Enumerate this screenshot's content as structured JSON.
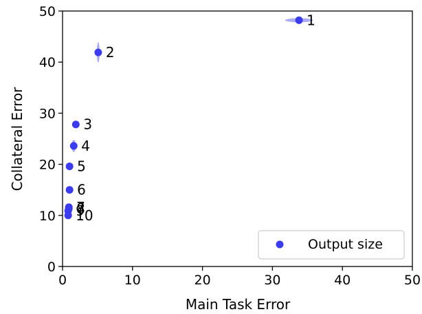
{
  "chart_data": {
    "type": "scatter",
    "xlabel": "Main Task Error",
    "ylabel": "Collateral Error",
    "xlim": [
      0,
      50
    ],
    "ylim": [
      0,
      50
    ],
    "xticks": [
      0,
      10,
      20,
      30,
      40,
      50
    ],
    "yticks": [
      0,
      10,
      20,
      30,
      40,
      50
    ],
    "grid": false,
    "legend": {
      "position": "bottom-right",
      "entries": [
        "Output size"
      ]
    },
    "series": [
      {
        "name": "Output size",
        "color": "#3b3bf0",
        "error_color": "#8f8ff0",
        "points": [
          {
            "label": "1",
            "x": 33.8,
            "y": 48.2,
            "xerr": 2.0,
            "yerr": 0.4
          },
          {
            "label": "2",
            "x": 5.1,
            "y": 41.9,
            "xerr": 0.2,
            "yerr": 2.0
          },
          {
            "label": "3",
            "x": 1.9,
            "y": 27.8,
            "xerr": 0.2,
            "yerr": 0.5
          },
          {
            "label": "4",
            "x": 1.6,
            "y": 23.6,
            "xerr": 0.3,
            "yerr": 1.2
          },
          {
            "label": "5",
            "x": 1.0,
            "y": 19.6,
            "xerr": 0.2,
            "yerr": 0.8
          },
          {
            "label": "6",
            "x": 1.0,
            "y": 15.0,
            "xerr": 0.1,
            "yerr": 0.4
          },
          {
            "label": "7",
            "x": 0.9,
            "y": 11.6,
            "xerr": 0.1,
            "yerr": 0.3
          },
          {
            "label": "8",
            "x": 0.9,
            "y": 11.3,
            "xerr": 0.1,
            "yerr": 0.3
          },
          {
            "label": "9",
            "x": 0.8,
            "y": 10.9,
            "xerr": 0.1,
            "yerr": 0.3
          },
          {
            "label": "10",
            "x": 0.8,
            "y": 10.0,
            "xerr": 0.1,
            "yerr": 0.3
          }
        ]
      }
    ]
  }
}
